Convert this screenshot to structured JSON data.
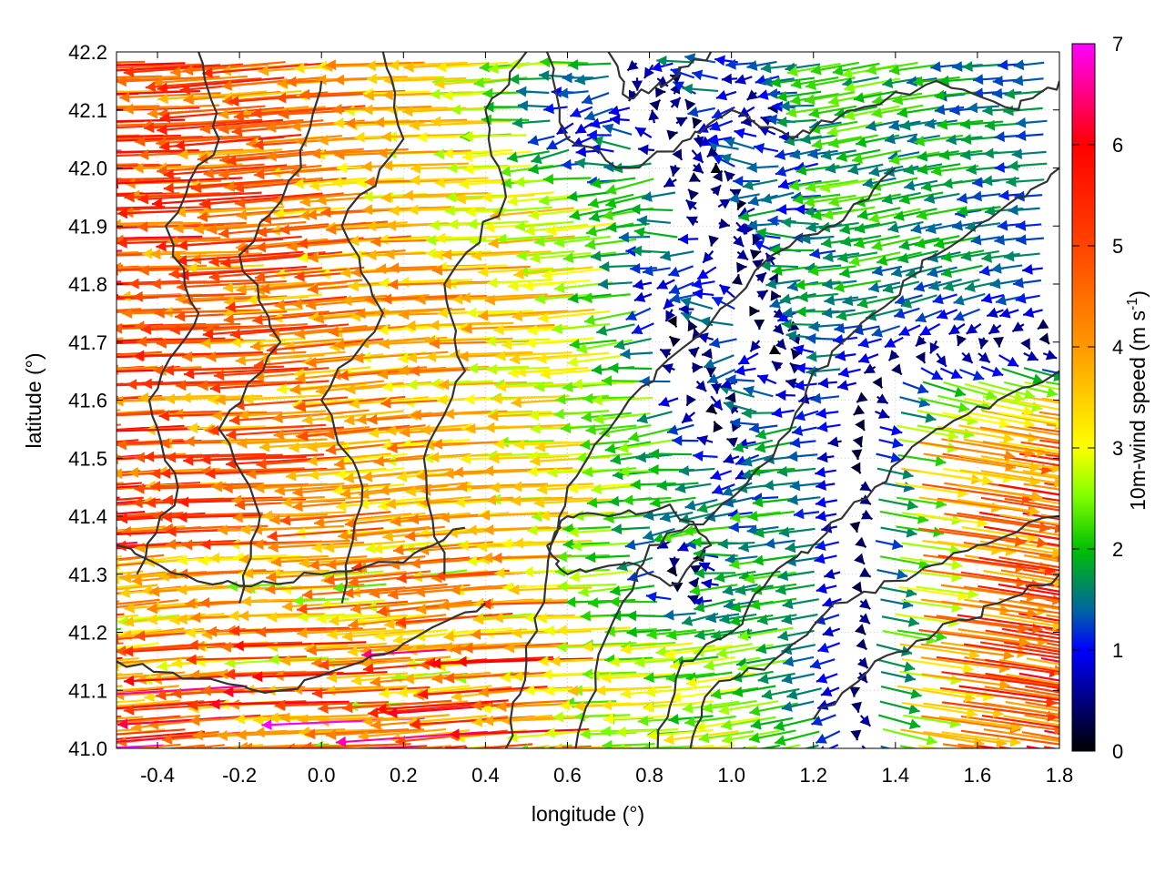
{
  "chart_data": {
    "type": "vector-field",
    "xlabel": "longitude (°)",
    "ylabel": "latitude (°)",
    "xlim": [
      -0.5,
      1.8
    ],
    "ylim": [
      41.0,
      42.2
    ],
    "xticks": [
      "-0.4",
      "-0.2",
      "0.0",
      "0.2",
      "0.4",
      "0.6",
      "0.8",
      "1.0",
      "1.2",
      "1.4",
      "1.6",
      "1.8"
    ],
    "xtick_values": [
      -0.4,
      -0.2,
      0.0,
      0.2,
      0.4,
      0.6,
      0.8,
      1.0,
      1.2,
      1.4,
      1.6,
      1.8
    ],
    "yticks": [
      "41.0",
      "41.1",
      "41.2",
      "41.3",
      "41.4",
      "41.5",
      "41.6",
      "41.7",
      "41.8",
      "41.9",
      "42.0",
      "42.1",
      "42.2"
    ],
    "ytick_values": [
      41.0,
      41.1,
      41.2,
      41.3,
      41.4,
      41.5,
      41.6,
      41.7,
      41.8,
      41.9,
      42.0,
      42.1,
      42.2
    ],
    "grid": true,
    "colorbar": {
      "label": "10m-wind speed (m s",
      "label_exp": "-1",
      "label_close": ")",
      "range": [
        0,
        7
      ],
      "ticks": [
        "0",
        "1",
        "2",
        "3",
        "4",
        "5",
        "6",
        "7"
      ],
      "tick_values": [
        0,
        1,
        2,
        3,
        4,
        5,
        6,
        7
      ],
      "colors": [
        "#000000",
        "#0000ff",
        "#00c000",
        "#ffff00",
        "#ff9900",
        "#ff0000",
        "#ff00ff"
      ]
    },
    "wind_field": {
      "lon_step": 0.05,
      "lat_step": 0.025,
      "description_regions": [
        {
          "lon": [
            -0.5,
            0.35
          ],
          "lat": [
            41.4,
            42.2
          ],
          "speed": 5.0,
          "direction": "westward"
        },
        {
          "lon": [
            0.35,
            0.8
          ],
          "lat": [
            41.4,
            41.9
          ],
          "speed": 3.0,
          "direction": "westward"
        },
        {
          "lon": [
            0.8,
            1.3
          ],
          "lat": [
            41.5,
            42.1
          ],
          "speed": 0.8,
          "direction": "variable"
        },
        {
          "lon": [
            1.3,
            1.8
          ],
          "lat": [
            41.0,
            41.7
          ],
          "speed": 4.5,
          "direction": "eastward"
        },
        {
          "lon": [
            -0.5,
            0.8
          ],
          "lat": [
            41.0,
            41.3
          ],
          "speed": 4.5,
          "direction": "westward"
        }
      ]
    }
  }
}
